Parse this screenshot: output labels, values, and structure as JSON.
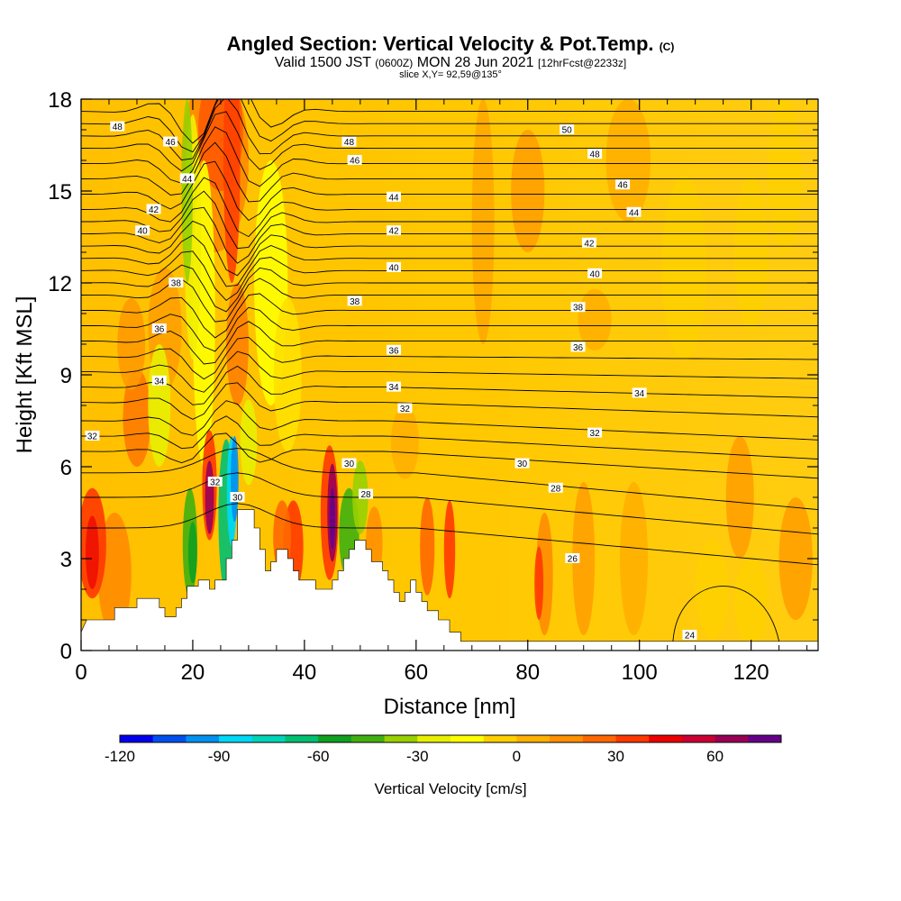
{
  "header": {
    "title": "Angled Section: Vertical Velocity & Pot.Temp.",
    "title_mark": "(C)",
    "valid_a": "Valid 1500 JST",
    "valid_utc": "(0600Z)",
    "valid_b": "MON 28 Jun 2021",
    "valid_fcst": "[12hrFcst@2233z]",
    "slice": "slice X,Y= 92,59@135°"
  },
  "chart_data": {
    "type": "heatmap",
    "xlabel": "Distance [nm]",
    "ylabel": "Height [Kft MSL]",
    "xlim": [
      0,
      132
    ],
    "ylim": [
      0,
      18
    ],
    "x_ticks": [
      0,
      20,
      40,
      60,
      80,
      100,
      120
    ],
    "y_ticks": [
      0,
      3,
      6,
      9,
      12,
      15,
      18
    ],
    "colorbar": {
      "label": "Vertical Velocity [cm/s]",
      "min": -120,
      "max": 80,
      "step": 10,
      "tick_values": [
        -120,
        -90,
        -60,
        -30,
        0,
        30,
        60
      ],
      "colors": [
        "#0000ee",
        "#0050f0",
        "#0090f0",
        "#00d8f8",
        "#00d4b8",
        "#00c070",
        "#10a020",
        "#40b010",
        "#98d000",
        "#e8f000",
        "#ffff00",
        "#ffd000",
        "#ffb000",
        "#ff9000",
        "#ff6800",
        "#ff3800",
        "#ee0000",
        "#cc0033",
        "#990055",
        "#660088"
      ]
    },
    "terrain": [
      [
        0,
        0.6
      ],
      [
        1,
        1.0
      ],
      [
        6,
        1.0
      ],
      [
        6,
        1.4
      ],
      [
        10,
        1.4
      ],
      [
        10,
        1.7
      ],
      [
        14,
        1.7
      ],
      [
        14,
        1.4
      ],
      [
        15,
        1.4
      ],
      [
        15,
        1.1
      ],
      [
        17,
        1.1
      ],
      [
        17,
        1.4
      ],
      [
        18,
        1.4
      ],
      [
        18,
        1.7
      ],
      [
        19,
        1.7
      ],
      [
        19,
        2.1
      ],
      [
        21,
        2.1
      ],
      [
        21,
        2.3
      ],
      [
        23,
        2.3
      ],
      [
        23,
        2.0
      ],
      [
        24,
        2.0
      ],
      [
        24,
        2.3
      ],
      [
        26,
        2.3
      ],
      [
        26,
        3.0
      ],
      [
        27,
        3.0
      ],
      [
        27,
        3.6
      ],
      [
        28,
        3.6
      ],
      [
        28,
        4.6
      ],
      [
        31,
        4.6
      ],
      [
        31,
        4.0
      ],
      [
        32,
        4.0
      ],
      [
        32,
        3.3
      ],
      [
        33,
        3.3
      ],
      [
        33,
        2.6
      ],
      [
        34,
        2.6
      ],
      [
        34,
        2.9
      ],
      [
        35,
        2.9
      ],
      [
        35,
        3.3
      ],
      [
        37,
        3.3
      ],
      [
        37,
        3.0
      ],
      [
        38,
        3.0
      ],
      [
        38,
        2.6
      ],
      [
        39,
        2.6
      ],
      [
        39,
        2.3
      ],
      [
        42,
        2.3
      ],
      [
        42,
        2.0
      ],
      [
        45,
        2.0
      ],
      [
        45,
        2.3
      ],
      [
        46,
        2.3
      ],
      [
        46,
        2.6
      ],
      [
        47,
        2.6
      ],
      [
        47,
        3.0
      ],
      [
        48,
        3.0
      ],
      [
        48,
        3.3
      ],
      [
        49,
        3.3
      ],
      [
        49,
        3.6
      ],
      [
        51,
        3.6
      ],
      [
        51,
        3.3
      ],
      [
        52,
        3.3
      ],
      [
        52,
        2.9
      ],
      [
        54,
        2.9
      ],
      [
        54,
        2.6
      ],
      [
        55,
        2.6
      ],
      [
        55,
        2.3
      ],
      [
        56,
        2.3
      ],
      [
        56,
        1.9
      ],
      [
        57,
        1.9
      ],
      [
        57,
        1.6
      ],
      [
        58,
        1.6
      ],
      [
        58,
        1.9
      ],
      [
        59,
        1.9
      ],
      [
        59,
        2.3
      ],
      [
        60,
        2.3
      ],
      [
        60,
        1.9
      ],
      [
        61,
        1.9
      ],
      [
        61,
        1.6
      ],
      [
        62,
        1.6
      ],
      [
        62,
        1.3
      ],
      [
        64,
        1.3
      ],
      [
        64,
        1.0
      ],
      [
        66,
        1.0
      ],
      [
        66,
        0.6
      ],
      [
        68,
        0.6
      ],
      [
        68,
        0.3
      ],
      [
        132,
        0.3
      ]
    ],
    "isentrope_labels": [
      {
        "value": "48",
        "x": 6.5,
        "y": 17.1
      },
      {
        "value": "46",
        "x": 16,
        "y": 16.6
      },
      {
        "value": "44",
        "x": 19,
        "y": 15.4
      },
      {
        "value": "42",
        "x": 13,
        "y": 14.4
      },
      {
        "value": "40",
        "x": 11,
        "y": 13.7
      },
      {
        "value": "38",
        "x": 17,
        "y": 12.0
      },
      {
        "value": "36",
        "x": 14,
        "y": 10.5
      },
      {
        "value": "34",
        "x": 14,
        "y": 8.8
      },
      {
        "value": "32",
        "x": 2,
        "y": 7.0
      },
      {
        "value": "32",
        "x": 24,
        "y": 5.5
      },
      {
        "value": "30",
        "x": 28,
        "y": 5.0
      },
      {
        "value": "48",
        "x": 48,
        "y": 16.6
      },
      {
        "value": "46",
        "x": 49,
        "y": 16.0
      },
      {
        "value": "44",
        "x": 56,
        "y": 14.8
      },
      {
        "value": "42",
        "x": 56,
        "y": 13.7
      },
      {
        "value": "40",
        "x": 56,
        "y": 12.5
      },
      {
        "value": "38",
        "x": 49,
        "y": 11.4
      },
      {
        "value": "36",
        "x": 56,
        "y": 9.8
      },
      {
        "value": "34",
        "x": 56,
        "y": 8.6
      },
      {
        "value": "32",
        "x": 58,
        "y": 7.9
      },
      {
        "value": "30",
        "x": 48,
        "y": 6.1
      },
      {
        "value": "28",
        "x": 51,
        "y": 5.1
      },
      {
        "value": "50",
        "x": 87,
        "y": 17.0
      },
      {
        "value": "48",
        "x": 92,
        "y": 16.2
      },
      {
        "value": "46",
        "x": 97,
        "y": 15.2
      },
      {
        "value": "44",
        "x": 99,
        "y": 14.3
      },
      {
        "value": "42",
        "x": 91,
        "y": 13.3
      },
      {
        "value": "40",
        "x": 92,
        "y": 12.3
      },
      {
        "value": "38",
        "x": 89,
        "y": 11.2
      },
      {
        "value": "36",
        "x": 89,
        "y": 9.9
      },
      {
        "value": "34",
        "x": 100,
        "y": 8.4
      },
      {
        "value": "32",
        "x": 92,
        "y": 7.1
      },
      {
        "value": "30",
        "x": 79,
        "y": 6.1
      },
      {
        "value": "28",
        "x": 85,
        "y": 5.3
      },
      {
        "value": "26",
        "x": 88,
        "y": 3.0
      },
      {
        "value": "24",
        "x": 109,
        "y": 0.5
      }
    ]
  }
}
